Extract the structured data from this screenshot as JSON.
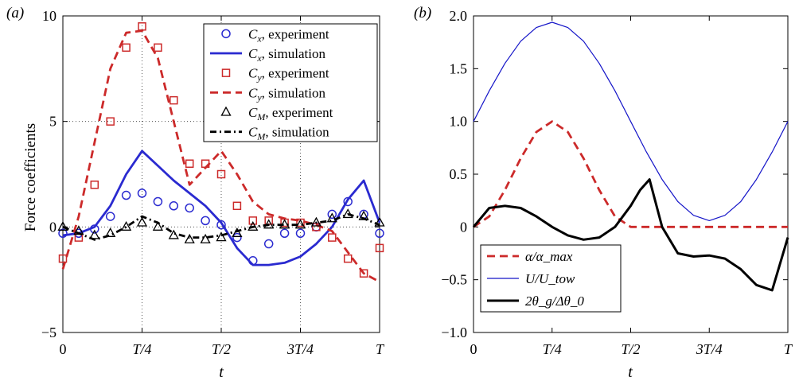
{
  "chart_data": [
    {
      "type": "line",
      "panel_label": "(a)",
      "xlabel": "t",
      "ylabel": "Force coefficients",
      "xlim": [
        0,
        1
      ],
      "ylim": [
        -5,
        10
      ],
      "xticks": [
        0,
        0.25,
        0.5,
        0.75,
        1
      ],
      "xtick_labels": [
        "0",
        "T/4",
        "T/2",
        "3T/4",
        "T"
      ],
      "yticks": [
        -5,
        0,
        5,
        10
      ],
      "ytick_labels": [
        "−5",
        "0",
        "5",
        "10"
      ],
      "grid": "dotted at x=T/4, T/2, 3T/4 and y=0, 5",
      "legend_position": "top-right",
      "series": [
        {
          "name": "C_x, experiment",
          "label_base": "C",
          "label_sub": "x",
          "label_rest": ", experiment",
          "style": "circle-markers",
          "color": "#2a2ad0",
          "x": [
            0,
            0.05,
            0.1,
            0.15,
            0.2,
            0.25,
            0.3,
            0.35,
            0.4,
            0.45,
            0.5,
            0.55,
            0.6,
            0.65,
            0.7,
            0.75,
            0.8,
            0.85,
            0.9,
            0.95,
            1.0
          ],
          "y": [
            -0.3,
            -0.3,
            -0.1,
            0.5,
            1.5,
            1.6,
            1.2,
            1.0,
            0.9,
            0.3,
            0.1,
            -0.5,
            -1.6,
            -0.8,
            -0.3,
            -0.3,
            0.0,
            0.6,
            1.2,
            0.6,
            -0.3
          ]
        },
        {
          "name": "C_x, simulation",
          "label_base": "C",
          "label_sub": "x",
          "label_rest": ", simulation",
          "style": "solid",
          "color": "#2a2ad0",
          "x": [
            0,
            0.05,
            0.1,
            0.15,
            0.2,
            0.25,
            0.3,
            0.35,
            0.4,
            0.45,
            0.5,
            0.55,
            0.6,
            0.65,
            0.7,
            0.75,
            0.8,
            0.85,
            0.9,
            0.95,
            1.0
          ],
          "y": [
            -0.4,
            -0.3,
            0.0,
            1.0,
            2.5,
            3.6,
            2.9,
            2.2,
            1.6,
            1.0,
            0.2,
            -1.0,
            -1.8,
            -1.8,
            -1.7,
            -1.4,
            -0.8,
            0.0,
            1.3,
            2.2,
            0.2
          ]
        },
        {
          "name": "C_y, experiment",
          "label_base": "C",
          "label_sub": "y",
          "label_rest": ", experiment",
          "style": "square-markers",
          "color": "#cc2a2a",
          "x": [
            0,
            0.05,
            0.1,
            0.15,
            0.2,
            0.25,
            0.3,
            0.35,
            0.4,
            0.45,
            0.5,
            0.55,
            0.6,
            0.65,
            0.7,
            0.75,
            0.8,
            0.85,
            0.9,
            0.95,
            1.0
          ],
          "y": [
            -1.5,
            -0.5,
            2.0,
            5.0,
            8.5,
            9.5,
            8.5,
            6.0,
            3.0,
            3.0,
            2.5,
            1.0,
            0.3,
            0.3,
            0.2,
            0.2,
            0.0,
            -0.5,
            -1.5,
            -2.2,
            -1.0
          ]
        },
        {
          "name": "C_y, simulation",
          "label_base": "C",
          "label_sub": "y",
          "label_rest": ", simulation",
          "style": "dashed",
          "color": "#cc2a2a",
          "x": [
            0,
            0.05,
            0.1,
            0.15,
            0.2,
            0.25,
            0.3,
            0.35,
            0.4,
            0.45,
            0.5,
            0.55,
            0.6,
            0.65,
            0.7,
            0.75,
            0.8,
            0.85,
            0.9,
            0.95,
            1.0
          ],
          "y": [
            -2.0,
            0.5,
            4.0,
            7.5,
            9.2,
            9.3,
            8.0,
            5.0,
            2.0,
            2.8,
            3.6,
            2.5,
            1.2,
            0.6,
            0.4,
            0.3,
            0.1,
            -0.2,
            -1.2,
            -2.2,
            -2.6
          ]
        },
        {
          "name": "C_M, experiment",
          "label_base": "C",
          "label_sub": "M",
          "label_rest": ", experiment",
          "style": "triangle-markers",
          "color": "#000000",
          "x": [
            0,
            0.05,
            0.1,
            0.15,
            0.2,
            0.25,
            0.3,
            0.35,
            0.4,
            0.45,
            0.5,
            0.55,
            0.6,
            0.65,
            0.7,
            0.75,
            0.8,
            0.85,
            0.9,
            0.95,
            1.0
          ],
          "y": [
            0.0,
            -0.2,
            -0.4,
            -0.3,
            0.0,
            0.2,
            0.0,
            -0.4,
            -0.6,
            -0.6,
            -0.5,
            -0.3,
            0.0,
            0.1,
            0.1,
            0.1,
            0.2,
            0.4,
            0.6,
            0.5,
            0.2
          ]
        },
        {
          "name": "C_M, simulation",
          "label_base": "C",
          "label_sub": "M",
          "label_rest": ", simulation",
          "style": "dashdot",
          "color": "#000000",
          "x": [
            0,
            0.05,
            0.1,
            0.15,
            0.2,
            0.25,
            0.3,
            0.35,
            0.4,
            0.45,
            0.5,
            0.55,
            0.6,
            0.65,
            0.7,
            0.75,
            0.8,
            0.85,
            0.9,
            0.95,
            1.0
          ],
          "y": [
            0.0,
            -0.3,
            -0.6,
            -0.4,
            0.0,
            0.5,
            0.2,
            -0.3,
            -0.5,
            -0.5,
            -0.4,
            -0.2,
            0.0,
            0.1,
            0.1,
            0.1,
            0.2,
            0.3,
            0.6,
            0.4,
            0.1
          ]
        }
      ]
    },
    {
      "type": "line",
      "panel_label": "(b)",
      "xlabel": "t",
      "ylabel": "",
      "xlim": [
        0,
        1
      ],
      "ylim": [
        -1.0,
        2.0
      ],
      "xticks": [
        0,
        0.25,
        0.5,
        0.75,
        1
      ],
      "xtick_labels": [
        "0",
        "T/4",
        "T/2",
        "3T/4",
        "T"
      ],
      "yticks": [
        -1.0,
        -0.5,
        0,
        0.5,
        1.0,
        1.5,
        2.0
      ],
      "ytick_labels": [
        "−1.0",
        "−0.5",
        "0",
        "0.5",
        "1.0",
        "1.5",
        "2.0"
      ],
      "grid": "off",
      "legend_position": "bottom-left",
      "series": [
        {
          "name": "α/α_max",
          "label_html": "α/α<tspan baseline-shift='sub' font-size='11'>max</tspan>",
          "style": "dashed",
          "color": "#cc2a2a",
          "x": [
            0,
            0.05,
            0.1,
            0.15,
            0.2,
            0.25,
            0.3,
            0.35,
            0.4,
            0.45,
            0.5,
            0.55,
            0.6,
            0.65,
            0.7,
            0.75,
            0.8,
            0.85,
            0.9,
            0.95,
            1.0
          ],
          "y": [
            0.0,
            0.1,
            0.35,
            0.65,
            0.9,
            1.0,
            0.9,
            0.65,
            0.35,
            0.1,
            0.0,
            0.0,
            0.0,
            0.0,
            0.0,
            0.0,
            0.0,
            0.0,
            0.0,
            0.0,
            0.0
          ]
        },
        {
          "name": "U/U_tow",
          "label_html": "U/U<tspan baseline-shift='sub' font-size='11'>tow</tspan>",
          "style": "thin-solid",
          "color": "#1515c8",
          "x": [
            0,
            0.05,
            0.1,
            0.15,
            0.2,
            0.25,
            0.3,
            0.35,
            0.4,
            0.45,
            0.5,
            0.55,
            0.6,
            0.65,
            0.7,
            0.75,
            0.8,
            0.85,
            0.9,
            0.95,
            1.0
          ],
          "y": [
            1.0,
            1.29,
            1.55,
            1.76,
            1.89,
            1.94,
            1.89,
            1.76,
            1.55,
            1.29,
            1.0,
            0.71,
            0.45,
            0.24,
            0.11,
            0.06,
            0.11,
            0.24,
            0.45,
            0.71,
            1.0
          ]
        },
        {
          "name": "2θ_g/Δθ_0",
          "label_html": "2θ<tspan baseline-shift='sub' font-size='11'>g</tspan><tspan baseline-shift='super' font-size='1'> </tspan>/Δθ<tspan baseline-shift='sub' font-size='11'>0</tspan>",
          "style": "thick-solid",
          "color": "#000000",
          "x": [
            0,
            0.05,
            0.1,
            0.15,
            0.2,
            0.25,
            0.3,
            0.35,
            0.4,
            0.45,
            0.5,
            0.53,
            0.56,
            0.6,
            0.65,
            0.7,
            0.75,
            0.8,
            0.85,
            0.9,
            0.95,
            1.0
          ],
          "y": [
            0.0,
            0.18,
            0.2,
            0.18,
            0.1,
            0.0,
            -0.08,
            -0.12,
            -0.1,
            0.0,
            0.2,
            0.35,
            0.45,
            0.0,
            -0.25,
            -0.28,
            -0.27,
            -0.3,
            -0.4,
            -0.55,
            -0.6,
            -0.1
          ]
        }
      ]
    }
  ]
}
